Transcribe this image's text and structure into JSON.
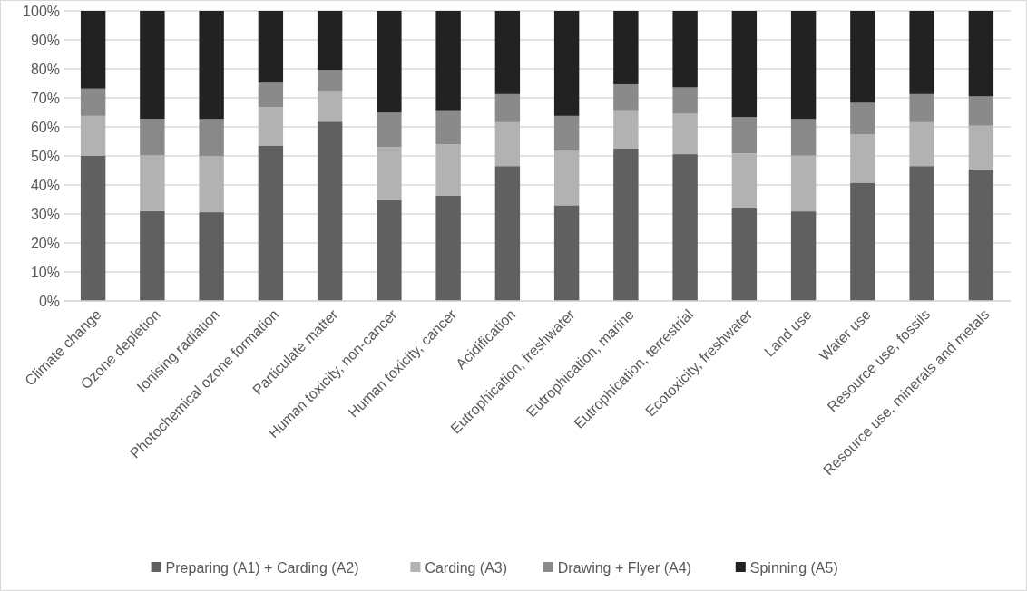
{
  "chart_data": {
    "type": "bar",
    "stacked": true,
    "categories": [
      "Climate change",
      "Ozone depletion",
      "Ionising radiation",
      "Photochemical ozone formation",
      "Particulate matter",
      "Human toxicity, non-cancer",
      "Human toxicity, cancer",
      "Acidification",
      "Eutrophication, freshwater",
      "Eutrophication, marine",
      "Eutrophication, terrestrial",
      "Ecotoxicity, freshwater",
      "Land use",
      "Water use",
      "Resource use, fossils",
      "Resource use, minerals and metals"
    ],
    "series": [
      {
        "name": "Preparing (A1) + Carding (A2)",
        "color": "#606060",
        "values": [
          50,
          31,
          30.6,
          53.6,
          61.8,
          34.8,
          36.4,
          46.5,
          33,
          52.5,
          50.6,
          31.9,
          30.9,
          40.8,
          46.5,
          45.3
        ]
      },
      {
        "name": "Carding (A3)",
        "color": "#b2b2b2",
        "values": [
          13.8,
          19.2,
          19.4,
          13.2,
          10.7,
          18.2,
          17.6,
          15.1,
          18.7,
          13.2,
          13.9,
          19,
          19.2,
          16.6,
          15.1,
          15.1
        ]
      },
      {
        "name": "Drawing + Flyer (A4)",
        "color": "#8a8a8a",
        "values": [
          9.4,
          12.6,
          12.7,
          8.4,
          7.1,
          11.9,
          11.7,
          9.7,
          12.1,
          9,
          9.1,
          12.5,
          12.6,
          10.9,
          9.7,
          10.1
        ]
      },
      {
        "name": "Spinning (A5)",
        "color": "#222222",
        "values": [
          26.8,
          37.2,
          37.3,
          24.8,
          20.4,
          35.1,
          34.3,
          28.7,
          36.2,
          25.3,
          26.4,
          36.6,
          37.3,
          31.7,
          28.7,
          29.5
        ]
      }
    ],
    "ylim": [
      0,
      100
    ],
    "yticks": [
      {
        "value": 0,
        "label": "0%"
      },
      {
        "value": 10,
        "label": "10%"
      },
      {
        "value": 20,
        "label": "20%"
      },
      {
        "value": 30,
        "label": "30%"
      },
      {
        "value": 40,
        "label": "40%"
      },
      {
        "value": 50,
        "label": "50%"
      },
      {
        "value": 60,
        "label": "60%"
      },
      {
        "value": 70,
        "label": "70%"
      },
      {
        "value": 80,
        "label": "80%"
      },
      {
        "value": 90,
        "label": "90%"
      },
      {
        "value": 100,
        "label": "100%"
      }
    ],
    "grid": "y",
    "legend": "bottom"
  }
}
